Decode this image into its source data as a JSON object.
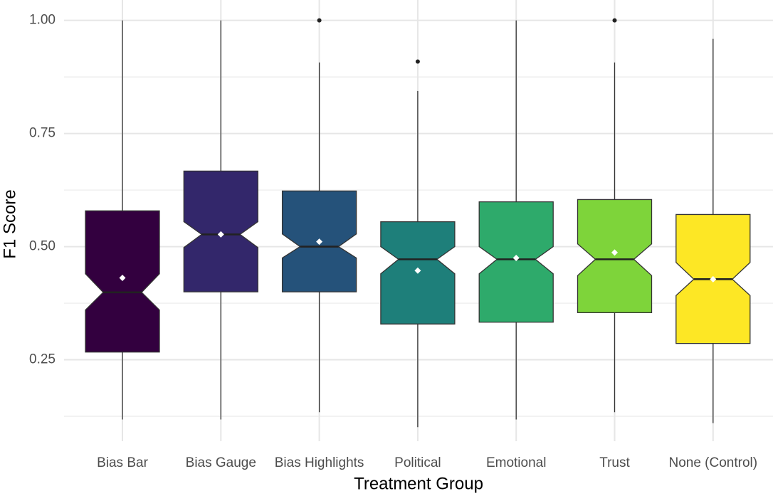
{
  "chart_data": {
    "type": "boxplot",
    "x_label": "Treatment Group",
    "y_label": "F1 Score",
    "categories": [
      "Bias Bar",
      "Bias Gauge",
      "Bias Highlights",
      "Political",
      "Emotional",
      "Trust",
      "None (Control)"
    ],
    "boxes": [
      {
        "whisker_low": 0.118,
        "q1": 0.267,
        "notch_low": 0.36,
        "median": 0.399,
        "notch_high": 0.44,
        "q3": 0.579,
        "whisker_high": 1.0,
        "mean": 0.431,
        "outliers": [],
        "color": "#33003f"
      },
      {
        "whisker_low": 0.118,
        "q1": 0.4,
        "notch_low": 0.498,
        "median": 0.527,
        "notch_high": 0.555,
        "q3": 0.667,
        "whisker_high": 1.0,
        "mean": 0.527,
        "outliers": [],
        "color": "#33276b"
      },
      {
        "whisker_low": 0.134,
        "q1": 0.4,
        "notch_low": 0.475,
        "median": 0.5,
        "notch_high": 0.528,
        "q3": 0.623,
        "whisker_high": 0.907,
        "mean": 0.511,
        "outliers": [
          1.0
        ],
        "color": "#25527a"
      },
      {
        "whisker_low": 0.101,
        "q1": 0.329,
        "notch_low": 0.44,
        "median": 0.472,
        "notch_high": 0.5,
        "q3": 0.555,
        "whisker_high": 0.844,
        "mean": 0.447,
        "outliers": [
          0.909
        ],
        "color": "#1e7f7a"
      },
      {
        "whisker_low": 0.118,
        "q1": 0.333,
        "notch_low": 0.44,
        "median": 0.472,
        "notch_high": 0.5,
        "q3": 0.599,
        "whisker_high": 1.0,
        "mean": 0.475,
        "outliers": [],
        "color": "#2eaa6b"
      },
      {
        "whisker_low": 0.134,
        "q1": 0.354,
        "notch_low": 0.436,
        "median": 0.472,
        "notch_high": 0.506,
        "q3": 0.604,
        "whisker_high": 0.907,
        "mean": 0.487,
        "outliers": [
          1.0
        ],
        "color": "#7ed43a"
      },
      {
        "whisker_low": 0.11,
        "q1": 0.286,
        "notch_low": 0.392,
        "median": 0.428,
        "notch_high": 0.465,
        "q3": 0.571,
        "whisker_high": 0.959,
        "mean": 0.428,
        "outliers": [],
        "color": "#fde725"
      }
    ],
    "ylim": [
      0.07,
      1.045
    ],
    "yticks": [
      0.25,
      {
        "value": 0.5,
        "label": "0.50"
      },
      0.75,
      {
        "value": 1.0,
        "label": "1.00"
      }
    ],
    "minor_yticks": [
      0.125,
      0.375,
      0.625,
      0.875
    ],
    "grid": true
  }
}
